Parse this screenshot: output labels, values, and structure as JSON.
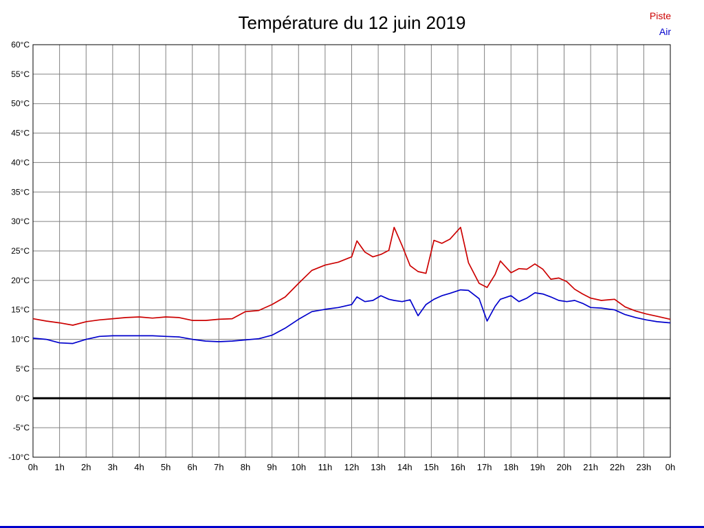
{
  "title": "Température du 12 juin 2019",
  "colors": {
    "piste": "#cc0000",
    "air": "#0000cc",
    "grid": "#808080",
    "axis": "#000000",
    "zero_line": "#000000",
    "bottom_bar": "#0000cc",
    "background": "#ffffff"
  },
  "chart_data": {
    "type": "line",
    "title": "Température du 12 juin 2019",
    "xlabel": "",
    "ylabel": "",
    "xlim": [
      0,
      24
    ],
    "ylim": [
      -10,
      60
    ],
    "grid": true,
    "legend_position": "top-right",
    "x_ticks": [
      0,
      1,
      2,
      3,
      4,
      5,
      6,
      7,
      8,
      9,
      10,
      11,
      12,
      13,
      14,
      15,
      16,
      17,
      18,
      19,
      20,
      21,
      22,
      23,
      24
    ],
    "x_tick_labels": [
      "0h",
      "1h",
      "2h",
      "3h",
      "4h",
      "5h",
      "6h",
      "7h",
      "8h",
      "9h",
      "10h",
      "11h",
      "12h",
      "13h",
      "14h",
      "15h",
      "16h",
      "17h",
      "18h",
      "19h",
      "20h",
      "21h",
      "22h",
      "23h",
      "0h"
    ],
    "y_ticks": [
      -10,
      -5,
      0,
      5,
      10,
      15,
      20,
      25,
      30,
      35,
      40,
      45,
      50,
      55,
      60
    ],
    "y_tick_suffix": "°C",
    "zero_line_width": 3,
    "series": [
      {
        "name": "Piste",
        "color": "#cc0000",
        "x": [
          0,
          0.5,
          1,
          1.5,
          2,
          2.5,
          3,
          3.5,
          4,
          4.5,
          5,
          5.5,
          6,
          6.5,
          7,
          7.5,
          8,
          8.5,
          9,
          9.5,
          10,
          10.5,
          11,
          11.5,
          12,
          12.2,
          12.5,
          12.8,
          13.1,
          13.4,
          13.6,
          13.9,
          14.2,
          14.5,
          14.8,
          15.1,
          15.4,
          15.7,
          16.1,
          16.4,
          16.8,
          17.1,
          17.4,
          17.6,
          18,
          18.3,
          18.6,
          18.9,
          19.2,
          19.5,
          19.8,
          20.1,
          20.4,
          20.7,
          21,
          21.4,
          21.9,
          22.3,
          22.7,
          23.1,
          23.5,
          24
        ],
        "values": [
          13.5,
          13.1,
          12.8,
          12.4,
          13.0,
          13.3,
          13.5,
          13.7,
          13.8,
          13.6,
          13.8,
          13.7,
          13.2,
          13.2,
          13.4,
          13.5,
          14.7,
          14.9,
          15.9,
          17.2,
          19.5,
          21.7,
          22.6,
          23.1,
          24.0,
          26.7,
          24.8,
          24.0,
          24.4,
          25.1,
          29.0,
          25.9,
          22.5,
          21.5,
          21.2,
          26.8,
          26.3,
          27.0,
          29.0,
          23.0,
          19.5,
          18.8,
          21.0,
          23.3,
          21.3,
          22.0,
          21.9,
          22.8,
          21.9,
          20.2,
          20.4,
          19.8,
          18.5,
          17.7,
          17.0,
          16.6,
          16.8,
          15.5,
          14.8,
          14.3,
          13.9,
          13.4
        ]
      },
      {
        "name": "Air",
        "color": "#0000cc",
        "x": [
          0,
          0.5,
          1,
          1.5,
          2,
          2.5,
          3,
          3.5,
          4,
          4.5,
          5,
          5.5,
          6,
          6.5,
          7,
          7.5,
          8,
          8.5,
          9,
          9.5,
          10,
          10.5,
          11,
          11.5,
          12,
          12.2,
          12.5,
          12.8,
          13.1,
          13.4,
          13.6,
          13.9,
          14.2,
          14.5,
          14.8,
          15.1,
          15.4,
          15.7,
          16.1,
          16.4,
          16.8,
          17.1,
          17.4,
          17.6,
          18,
          18.3,
          18.6,
          18.9,
          19.2,
          19.5,
          19.8,
          20.1,
          20.4,
          20.7,
          21,
          21.4,
          21.9,
          22.3,
          22.7,
          23.1,
          23.5,
          24
        ],
        "values": [
          10.2,
          10.0,
          9.4,
          9.3,
          10.0,
          10.5,
          10.6,
          10.6,
          10.6,
          10.6,
          10.5,
          10.4,
          10.0,
          9.7,
          9.6,
          9.7,
          9.9,
          10.1,
          10.7,
          11.9,
          13.4,
          14.7,
          15.1,
          15.4,
          15.9,
          17.2,
          16.4,
          16.6,
          17.4,
          16.8,
          16.6,
          16.4,
          16.7,
          14.0,
          15.9,
          16.8,
          17.4,
          17.8,
          18.4,
          18.3,
          16.9,
          13.1,
          15.6,
          16.8,
          17.4,
          16.4,
          17.0,
          17.9,
          17.7,
          17.2,
          16.6,
          16.4,
          16.6,
          16.1,
          15.4,
          15.3,
          15.0,
          14.2,
          13.7,
          13.3,
          13.0,
          12.8
        ]
      }
    ]
  }
}
